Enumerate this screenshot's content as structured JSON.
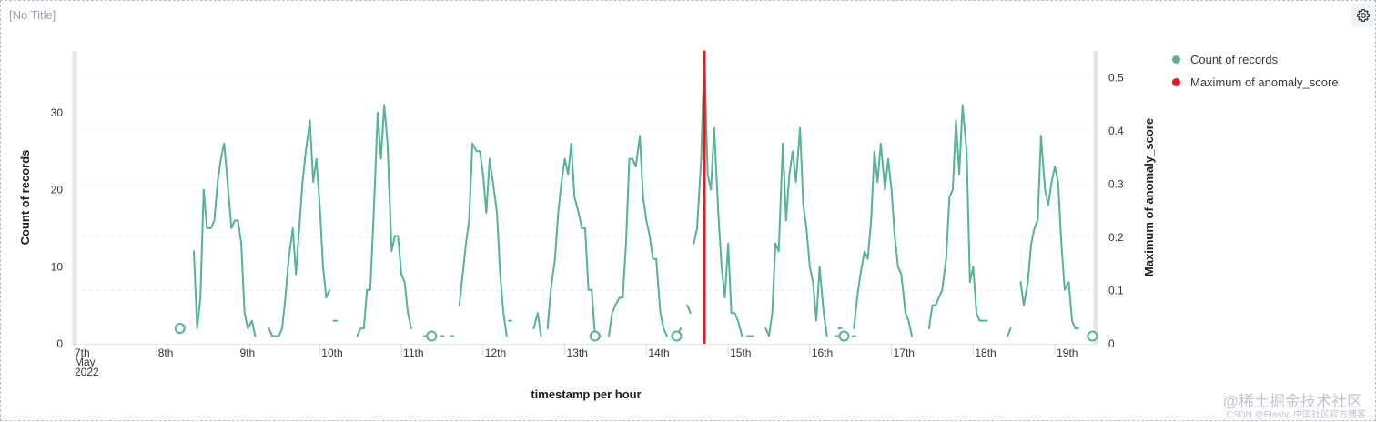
{
  "panel": {
    "title": "[No Title]",
    "settings_icon": "gear-icon"
  },
  "legend": {
    "items": [
      {
        "label": "Count of records",
        "color": "#54b399"
      },
      {
        "label": "Maximum of anomaly_score",
        "color": "#e7191d"
      }
    ]
  },
  "watermark": {
    "line1": "@稀土掘金技术社区",
    "line2": "CSDN @Elastic 中国社区官方博客"
  },
  "chart_data": {
    "type": "line",
    "title": "",
    "xlabel": "timestamp per hour",
    "ylabel": "Count of records",
    "y2label": "Maximum of anomaly_score",
    "x_start_label": [
      "7th",
      "May",
      "2022"
    ],
    "x_ticks": [
      "8th",
      "9th",
      "10th",
      "11th",
      "12th",
      "13th",
      "14th",
      "15th",
      "16th",
      "17th",
      "18th",
      "19th"
    ],
    "ylim": [
      0,
      38
    ],
    "y_ticks": [
      0,
      10,
      20,
      30
    ],
    "y2lim": [
      0,
      0.55
    ],
    "y2_ticks": [
      "0",
      "0.1",
      "0.2",
      "0.3",
      "0.4",
      "0.5"
    ],
    "x_range_days": [
      0,
      12.5
    ],
    "grid": true,
    "legend_position": "right",
    "series": [
      {
        "name": "Count of records",
        "color": "#54b399",
        "axis": "left",
        "segments": [
          [
            [
              1.29,
              2
            ]
          ],
          [
            [
              1.46,
              12
            ],
            [
              1.5,
              2
            ],
            [
              1.54,
              6
            ],
            [
              1.58,
              20
            ],
            [
              1.62,
              15
            ],
            [
              1.67,
              15
            ],
            [
              1.71,
              16
            ],
            [
              1.75,
              21
            ],
            [
              1.79,
              24
            ],
            [
              1.83,
              26
            ],
            [
              1.88,
              20
            ],
            [
              1.92,
              15
            ],
            [
              1.96,
              16
            ],
            [
              2.0,
              16
            ],
            [
              2.04,
              13
            ],
            [
              2.08,
              4
            ],
            [
              2.12,
              2
            ],
            [
              2.17,
              3
            ],
            [
              2.21,
              1
            ]
          ],
          [
            [
              2.38,
              2
            ],
            [
              2.42,
              1
            ],
            [
              2.5,
              1
            ],
            [
              2.54,
              2
            ],
            [
              2.58,
              6
            ],
            [
              2.62,
              11
            ],
            [
              2.67,
              15
            ],
            [
              2.71,
              9
            ],
            [
              2.75,
              15
            ],
            [
              2.79,
              21
            ],
            [
              2.83,
              25
            ],
            [
              2.88,
              29
            ],
            [
              2.92,
              21
            ],
            [
              2.96,
              24
            ],
            [
              3.0,
              18
            ],
            [
              3.04,
              10
            ],
            [
              3.08,
              6
            ],
            [
              3.12,
              7
            ]
          ],
          [
            [
              3.17,
              3
            ],
            [
              3.21,
              3
            ]
          ],
          [
            [
              3.46,
              1
            ],
            [
              3.5,
              2
            ],
            [
              3.54,
              2
            ],
            [
              3.58,
              7
            ],
            [
              3.62,
              7
            ],
            [
              3.67,
              19
            ],
            [
              3.71,
              30
            ],
            [
              3.75,
              24
            ],
            [
              3.79,
              31
            ],
            [
              3.83,
              26
            ],
            [
              3.88,
              12
            ],
            [
              3.92,
              14
            ],
            [
              3.96,
              14
            ],
            [
              4.0,
              9
            ],
            [
              4.04,
              8
            ],
            [
              4.08,
              4
            ],
            [
              4.12,
              2
            ]
          ],
          [
            [
              4.29,
              1
            ]
          ],
          [
            [
              4.5,
              1
            ]
          ],
          [
            [
              4.62,
              1
            ]
          ],
          [
            [
              4.71,
              5
            ],
            [
              4.75,
              9
            ],
            [
              4.79,
              13
            ],
            [
              4.83,
              16
            ],
            [
              4.87,
              26
            ],
            [
              4.92,
              25
            ],
            [
              4.96,
              25
            ],
            [
              5.0,
              22
            ],
            [
              5.04,
              17
            ],
            [
              5.08,
              24
            ],
            [
              5.12,
              21
            ],
            [
              5.17,
              17
            ],
            [
              5.21,
              9
            ],
            [
              5.25,
              4
            ],
            [
              5.29,
              1
            ]
          ],
          [
            [
              5.33,
              3
            ]
          ],
          [
            [
              5.62,
              2
            ],
            [
              5.67,
              4
            ],
            [
              5.71,
              1
            ]
          ],
          [
            [
              5.79,
              2
            ],
            [
              5.83,
              7
            ],
            [
              5.88,
              11
            ],
            [
              5.92,
              17
            ],
            [
              5.96,
              21
            ],
            [
              6.0,
              24
            ],
            [
              6.04,
              22
            ],
            [
              6.08,
              26
            ],
            [
              6.12,
              19
            ],
            [
              6.17,
              17
            ],
            [
              6.21,
              15
            ],
            [
              6.25,
              15
            ],
            [
              6.29,
              7
            ],
            [
              6.33,
              7
            ],
            [
              6.37,
              1
            ]
          ],
          [
            [
              6.42,
              1
            ]
          ],
          [
            [
              6.54,
              1
            ],
            [
              6.58,
              4
            ],
            [
              6.62,
              5
            ],
            [
              6.67,
              6
            ],
            [
              6.71,
              6
            ],
            [
              6.75,
              13
            ],
            [
              6.79,
              24
            ],
            [
              6.83,
              24
            ],
            [
              6.87,
              23
            ],
            [
              6.92,
              27
            ],
            [
              6.96,
              19
            ],
            [
              7.0,
              16
            ],
            [
              7.04,
              14
            ],
            [
              7.08,
              11
            ],
            [
              7.12,
              11
            ],
            [
              7.17,
              4
            ],
            [
              7.21,
              2
            ],
            [
              7.25,
              1
            ]
          ],
          [
            [
              7.37,
              1
            ],
            [
              7.42,
              2
            ]
          ],
          [
            [
              7.5,
              5
            ],
            [
              7.54,
              4
            ]
          ],
          [
            [
              7.58,
              13
            ],
            [
              7.62,
              15
            ],
            [
              7.67,
              24
            ],
            [
              7.71,
              38
            ],
            [
              7.75,
              22
            ],
            [
              7.79,
              20
            ],
            [
              7.83,
              28
            ],
            [
              7.88,
              17
            ],
            [
              7.92,
              10
            ],
            [
              7.96,
              6
            ],
            [
              8.0,
              13
            ],
            [
              8.04,
              4
            ],
            [
              8.08,
              4
            ],
            [
              8.12,
              3
            ],
            [
              8.17,
              1
            ]
          ],
          [
            [
              8.25,
              1
            ]
          ],
          [
            [
              8.29,
              1
            ]
          ],
          [
            [
              8.46,
              2
            ],
            [
              8.5,
              1
            ],
            [
              8.54,
              4
            ],
            [
              8.58,
              13
            ],
            [
              8.62,
              12
            ],
            [
              8.67,
              26
            ],
            [
              8.71,
              16
            ],
            [
              8.75,
              22
            ],
            [
              8.79,
              25
            ],
            [
              8.83,
              21
            ],
            [
              8.88,
              28
            ],
            [
              8.92,
              18
            ],
            [
              8.96,
              15
            ],
            [
              9.0,
              10
            ],
            [
              9.04,
              8
            ],
            [
              9.08,
              3
            ],
            [
              9.12,
              10
            ],
            [
              9.17,
              4
            ],
            [
              9.21,
              1
            ]
          ],
          [
            [
              9.33,
              1
            ]
          ],
          [
            [
              9.37,
              2
            ]
          ],
          [
            [
              9.54,
              1
            ]
          ],
          [
            [
              9.54,
              2
            ],
            [
              9.58,
              6
            ],
            [
              9.62,
              9
            ],
            [
              9.67,
              12
            ],
            [
              9.71,
              11
            ],
            [
              9.75,
              16
            ],
            [
              9.79,
              25
            ],
            [
              9.83,
              21
            ],
            [
              9.87,
              26
            ],
            [
              9.92,
              20
            ],
            [
              9.96,
              24
            ],
            [
              10.0,
              20
            ],
            [
              10.04,
              14
            ],
            [
              10.08,
              10
            ],
            [
              10.12,
              9
            ],
            [
              10.17,
              4
            ],
            [
              10.21,
              3
            ],
            [
              10.25,
              1
            ]
          ],
          [
            [
              10.46,
              2
            ],
            [
              10.5,
              5
            ],
            [
              10.54,
              5
            ],
            [
              10.58,
              6
            ],
            [
              10.62,
              7
            ],
            [
              10.67,
              11
            ],
            [
              10.71,
              19
            ],
            [
              10.75,
              20
            ],
            [
              10.79,
              29
            ],
            [
              10.83,
              22
            ],
            [
              10.87,
              31
            ],
            [
              10.92,
              25
            ],
            [
              10.96,
              8
            ],
            [
              11.0,
              10
            ],
            [
              11.04,
              4
            ],
            [
              11.08,
              3
            ],
            [
              11.12,
              3
            ],
            [
              11.17,
              3
            ]
          ],
          [
            [
              11.42,
              1
            ],
            [
              11.46,
              2
            ]
          ],
          [
            [
              11.58,
              8
            ],
            [
              11.62,
              5
            ],
            [
              11.67,
              8
            ],
            [
              11.71,
              13
            ],
            [
              11.75,
              15
            ],
            [
              11.79,
              16
            ],
            [
              11.83,
              27
            ],
            [
              11.88,
              20
            ],
            [
              11.92,
              18
            ],
            [
              11.96,
              21
            ],
            [
              12.0,
              23
            ],
            [
              12.04,
              21
            ],
            [
              12.08,
              13
            ],
            [
              12.12,
              7
            ],
            [
              12.17,
              8
            ],
            [
              12.21,
              3
            ],
            [
              12.25,
              2
            ],
            [
              12.29,
              2
            ]
          ],
          [
            [
              12.42,
              1
            ],
            [
              12.46,
              1
            ]
          ]
        ],
        "hollow_points": [
          [
            1.29,
            2
          ],
          [
            4.37,
            1
          ],
          [
            6.37,
            1
          ],
          [
            7.37,
            1
          ],
          [
            9.42,
            1
          ],
          [
            12.46,
            1
          ]
        ]
      },
      {
        "name": "Maximum of anomaly_score",
        "color": "#e7191d",
        "axis": "right",
        "points": [
          [
            7.71,
            0.55
          ]
        ]
      }
    ]
  }
}
